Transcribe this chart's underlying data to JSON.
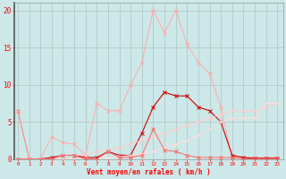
{
  "x": [
    0,
    1,
    2,
    3,
    4,
    5,
    6,
    7,
    8,
    9,
    10,
    11,
    12,
    13,
    14,
    15,
    16,
    17,
    18,
    19,
    20,
    21,
    22,
    23
  ],
  "line_rafales": [
    6.5,
    0,
    0,
    3.0,
    2.2,
    2.0,
    0.5,
    7.5,
    6.5,
    6.5,
    10.0,
    13.0,
    20.0,
    17.0,
    20.0,
    15.5,
    13.0,
    11.5,
    7.0,
    0.2,
    0.2,
    0.2,
    0.2,
    0.2
  ],
  "line_moyen": [
    0,
    0,
    0,
    0.2,
    0.5,
    0.5,
    0.2,
    0.2,
    1.0,
    0.5,
    0.5,
    3.5,
    7.0,
    9.0,
    8.5,
    8.5,
    7.0,
    6.5,
    5.0,
    0.5,
    0.2,
    0.1,
    0.1,
    0.1
  ],
  "line_diag1": [
    0,
    0,
    0,
    0,
    0.5,
    0.5,
    0.5,
    1.0,
    1.2,
    1.5,
    2.0,
    2.5,
    3.0,
    3.5,
    4.0,
    4.5,
    5.0,
    5.5,
    6.0,
    6.5,
    6.5,
    6.5,
    7.0,
    7.5
  ],
  "line_diag2": [
    0,
    0,
    0,
    0,
    0,
    0,
    0,
    0,
    0.2,
    0.3,
    0.5,
    0.7,
    1.0,
    1.5,
    2.0,
    2.5,
    3.2,
    4.0,
    5.0,
    5.5,
    5.5,
    5.5,
    7.5,
    7.5
  ],
  "line_small": [
    0,
    0,
    0,
    0,
    0.5,
    0.5,
    0,
    0,
    1.0,
    0.2,
    0.2,
    0.5,
    4.0,
    1.2,
    1.0,
    0.5,
    0.2,
    0.2,
    0.2,
    0.2,
    0,
    0,
    0,
    0
  ],
  "color_rafales": "#ffaaaa",
  "color_moyen": "#cc0000",
  "color_diag1": "#ffcccc",
  "color_diag2": "#ffdddd",
  "color_small": "#ff6666",
  "color_drop": "#ff8888",
  "background": "#cce8e8",
  "grid_color": "#aabbbb",
  "xlabel": "Vent moyen/en rafales ( km/h )",
  "ylim": [
    0,
    21
  ],
  "xlim": [
    -0.3,
    23.5
  ],
  "yticks": [
    0,
    5,
    10,
    15,
    20
  ],
  "xticks": [
    0,
    1,
    2,
    3,
    4,
    5,
    6,
    7,
    8,
    9,
    10,
    11,
    12,
    13,
    14,
    15,
    16,
    17,
    18,
    19,
    20,
    21,
    22,
    23
  ]
}
